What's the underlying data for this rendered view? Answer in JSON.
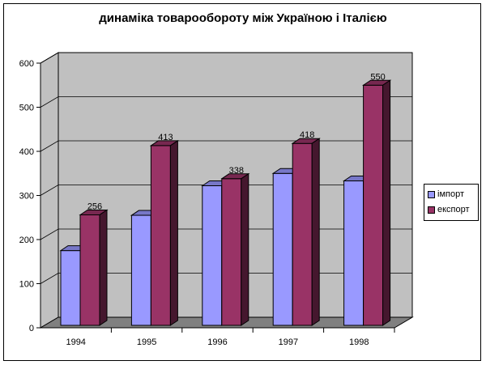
{
  "chart_data": {
    "type": "bar",
    "title": "динаміка товарообороту між Україною і Італією",
    "categories": [
      "1994",
      "1995",
      "1996",
      "1997",
      "1998"
    ],
    "series": [
      {
        "name": "імпорт",
        "values": [
          175,
          255,
          322,
          350,
          333
        ],
        "color": "#9999ff"
      },
      {
        "name": "експорт",
        "values": [
          256,
          413,
          338,
          418,
          550
        ],
        "color": "#993366"
      }
    ],
    "data_labels": [
      "256",
      "413",
      "338",
      "418",
      "550"
    ],
    "yticks": [
      "0",
      "100",
      "200",
      "300",
      "400",
      "500",
      "600"
    ],
    "ylim": [
      0,
      600
    ],
    "grid": true,
    "legend_position": "right",
    "colors": {
      "wall": "#c0c0c0",
      "floor": "#808080",
      "gridline": "#000000"
    }
  }
}
